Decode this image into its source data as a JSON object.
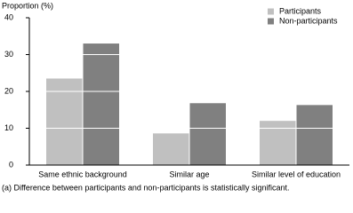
{
  "chart_data": {
    "type": "bar",
    "y_label": "Proportion (%)",
    "categories": [
      "Same ethnic background",
      "Similar age",
      "Similar level of education"
    ],
    "series": [
      {
        "name": "Participants",
        "color": "#c0c0c0",
        "values": [
          23.5,
          8.6,
          12
        ]
      },
      {
        "name": "Non-participants",
        "color": "#808080",
        "values": [
          33,
          16.8,
          16.3
        ]
      }
    ],
    "ylim": [
      0,
      40
    ],
    "yticks": [
      0,
      10,
      20,
      30,
      40
    ],
    "grid": true,
    "legend": "top-right",
    "footnote": "(a) Difference between participants and non-participants is statistically significant."
  }
}
